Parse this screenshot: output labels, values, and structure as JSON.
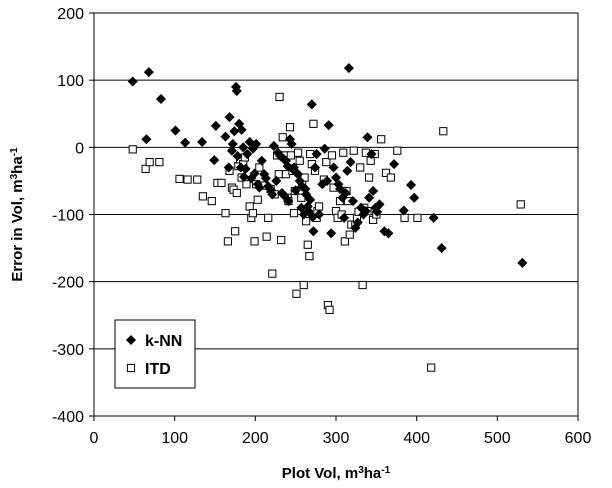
{
  "chart_data": {
    "type": "scatter",
    "title": "",
    "xlabel": {
      "main": "Plot Vol, m",
      "sup1": "3",
      "mid": "ha",
      "sup2": "-1"
    },
    "ylabel": {
      "main": "Error in Vol, m",
      "sup1": "3",
      "mid": "ha",
      "sup2": "-1"
    },
    "xlim": [
      0,
      600
    ],
    "ylim": [
      -400,
      200
    ],
    "xticks": [
      0,
      100,
      200,
      300,
      400,
      500,
      600
    ],
    "yticks": [
      200,
      100,
      0,
      -100,
      -200,
      -300,
      -400
    ],
    "grid": "horizontal",
    "legend": "bottom-left",
    "series": [
      {
        "name": "k-NN",
        "marker": "diamond-filled",
        "color": "#000000",
        "points": [
          [
            48,
            98
          ],
          [
            65,
            12
          ],
          [
            68,
            112
          ],
          [
            83,
            72
          ],
          [
            101,
            25
          ],
          [
            113,
            7
          ],
          [
            134,
            8
          ],
          [
            149,
            -19
          ],
          [
            151,
            32
          ],
          [
            163,
            16
          ],
          [
            167,
            -30
          ],
          [
            168,
            45
          ],
          [
            171,
            -5
          ],
          [
            172,
            5
          ],
          [
            174,
            24
          ],
          [
            176,
            90
          ],
          [
            177,
            84
          ],
          [
            178,
            -13
          ],
          [
            180,
            35
          ],
          [
            182,
            -30
          ],
          [
            183,
            26
          ],
          [
            185,
            0
          ],
          [
            186,
            -44
          ],
          [
            188,
            -32
          ],
          [
            190,
            -10
          ],
          [
            193,
            8
          ],
          [
            195,
            -46
          ],
          [
            197,
            -2
          ],
          [
            199,
            -39
          ],
          [
            201,
            5
          ],
          [
            203,
            -55
          ],
          [
            205,
            -60
          ],
          [
            208,
            -20
          ],
          [
            211,
            -40
          ],
          [
            213,
            -46
          ],
          [
            216,
            -58
          ],
          [
            219,
            -63
          ],
          [
            221,
            -70
          ],
          [
            223,
            2
          ],
          [
            226,
            -50
          ],
          [
            228,
            -8
          ],
          [
            231,
            -13
          ],
          [
            233,
            -68
          ],
          [
            235,
            -17
          ],
          [
            236,
            -72
          ],
          [
            238,
            -20
          ],
          [
            240,
            -28
          ],
          [
            241,
            -80
          ],
          [
            243,
            12
          ],
          [
            245,
            5
          ],
          [
            246,
            -32
          ],
          [
            248,
            -30
          ],
          [
            250,
            -64
          ],
          [
            251,
            -38
          ],
          [
            253,
            -40
          ],
          [
            255,
            -50
          ],
          [
            257,
            -90
          ],
          [
            258,
            -58
          ],
          [
            260,
            -100
          ],
          [
            262,
            -62
          ],
          [
            263,
            -70
          ],
          [
            265,
            -88
          ],
          [
            266,
            -95
          ],
          [
            268,
            -78
          ],
          [
            270,
            64
          ],
          [
            271,
            -104
          ],
          [
            272,
            -125
          ],
          [
            274,
            -30
          ],
          [
            276,
            -10
          ],
          [
            279,
            -100
          ],
          [
            283,
            -55
          ],
          [
            286,
            -2
          ],
          [
            289,
            -50
          ],
          [
            291,
            33
          ],
          [
            294,
            -128
          ],
          [
            297,
            -30
          ],
          [
            300,
            -45
          ],
          [
            303,
            -55
          ],
          [
            305,
            -62
          ],
          [
            308,
            -75
          ],
          [
            310,
            -105
          ],
          [
            312,
            -68
          ],
          [
            314,
            -35
          ],
          [
            316,
            118
          ],
          [
            318,
            -22
          ],
          [
            321,
            -80
          ],
          [
            324,
            -120
          ],
          [
            327,
            -112
          ],
          [
            331,
            -90
          ],
          [
            334,
            -100
          ],
          [
            337,
            -95
          ],
          [
            339,
            15
          ],
          [
            341,
            -75
          ],
          [
            344,
            -10
          ],
          [
            346,
            -65
          ],
          [
            349,
            -90
          ],
          [
            351,
            -96
          ],
          [
            354,
            -85
          ],
          [
            360,
            -125
          ],
          [
            365,
            -128
          ],
          [
            372,
            -25
          ],
          [
            384,
            -94
          ],
          [
            393,
            -56
          ],
          [
            397,
            -75
          ],
          [
            421,
            -105
          ],
          [
            431,
            -150
          ],
          [
            531,
            -172
          ]
        ]
      },
      {
        "name": "ITD",
        "marker": "square-open",
        "color": "#000000",
        "points": [
          [
            48,
            -3
          ],
          [
            64,
            -32
          ],
          [
            69,
            -22
          ],
          [
            81,
            -22
          ],
          [
            106,
            -47
          ],
          [
            116,
            -48
          ],
          [
            128,
            -48
          ],
          [
            135,
            -73
          ],
          [
            146,
            -80
          ],
          [
            153,
            -53
          ],
          [
            158,
            -53
          ],
          [
            163,
            -98
          ],
          [
            166,
            -140
          ],
          [
            168,
            -35
          ],
          [
            171,
            -60
          ],
          [
            173,
            -63
          ],
          [
            175,
            -125
          ],
          [
            177,
            -68
          ],
          [
            179,
            -28
          ],
          [
            181,
            -18
          ],
          [
            183,
            -45
          ],
          [
            185,
            -25
          ],
          [
            187,
            -15
          ],
          [
            189,
            -55
          ],
          [
            193,
            -88
          ],
          [
            195,
            -105
          ],
          [
            197,
            -98
          ],
          [
            199,
            -140
          ],
          [
            201,
            -55
          ],
          [
            203,
            -78
          ],
          [
            205,
            -30
          ],
          [
            211,
            -57
          ],
          [
            214,
            -133
          ],
          [
            216,
            -105
          ],
          [
            219,
            -62
          ],
          [
            221,
            -188
          ],
          [
            224,
            -70
          ],
          [
            227,
            -12
          ],
          [
            229,
            -40
          ],
          [
            230,
            75
          ],
          [
            232,
            -138
          ],
          [
            234,
            15
          ],
          [
            236,
            -12
          ],
          [
            238,
            -40
          ],
          [
            240,
            -75
          ],
          [
            241,
            -80
          ],
          [
            243,
            30
          ],
          [
            244,
            -12
          ],
          [
            246,
            -35
          ],
          [
            248,
            -98
          ],
          [
            249,
            -65
          ],
          [
            251,
            -218
          ],
          [
            253,
            -8
          ],
          [
            255,
            -20
          ],
          [
            257,
            -75
          ],
          [
            258,
            -55
          ],
          [
            260,
            -205
          ],
          [
            261,
            -45
          ],
          [
            263,
            -110
          ],
          [
            265,
            -145
          ],
          [
            267,
            -162
          ],
          [
            268,
            -10
          ],
          [
            270,
            -25
          ],
          [
            272,
            35
          ],
          [
            274,
            -35
          ],
          [
            276,
            -105
          ],
          [
            277,
            -95
          ],
          [
            279,
            -88
          ],
          [
            285,
            -48
          ],
          [
            288,
            -22
          ],
          [
            290,
            -235
          ],
          [
            292,
            -242
          ],
          [
            295,
            -12
          ],
          [
            297,
            -60
          ],
          [
            300,
            -95
          ],
          [
            302,
            -105
          ],
          [
            305,
            -80
          ],
          [
            307,
            -100
          ],
          [
            309,
            -8
          ],
          [
            311,
            -140
          ],
          [
            313,
            -65
          ],
          [
            315,
            -80
          ],
          [
            317,
            -130
          ],
          [
            319,
            -115
          ],
          [
            322,
            -5
          ],
          [
            324,
            -115
          ],
          [
            326,
            -105
          ],
          [
            328,
            -96
          ],
          [
            330,
            -30
          ],
          [
            333,
            -205
          ],
          [
            335,
            -90
          ],
          [
            337,
            -8
          ],
          [
            339,
            -95
          ],
          [
            341,
            -45
          ],
          [
            343,
            -20
          ],
          [
            346,
            -108
          ],
          [
            348,
            -10
          ],
          [
            350,
            -100
          ],
          [
            356,
            12
          ],
          [
            362,
            -38
          ],
          [
            368,
            -45
          ],
          [
            376,
            -5
          ],
          [
            385,
            -105
          ],
          [
            401,
            -105
          ],
          [
            418,
            -328
          ],
          [
            433,
            24
          ],
          [
            529,
            -85
          ]
        ]
      }
    ]
  }
}
